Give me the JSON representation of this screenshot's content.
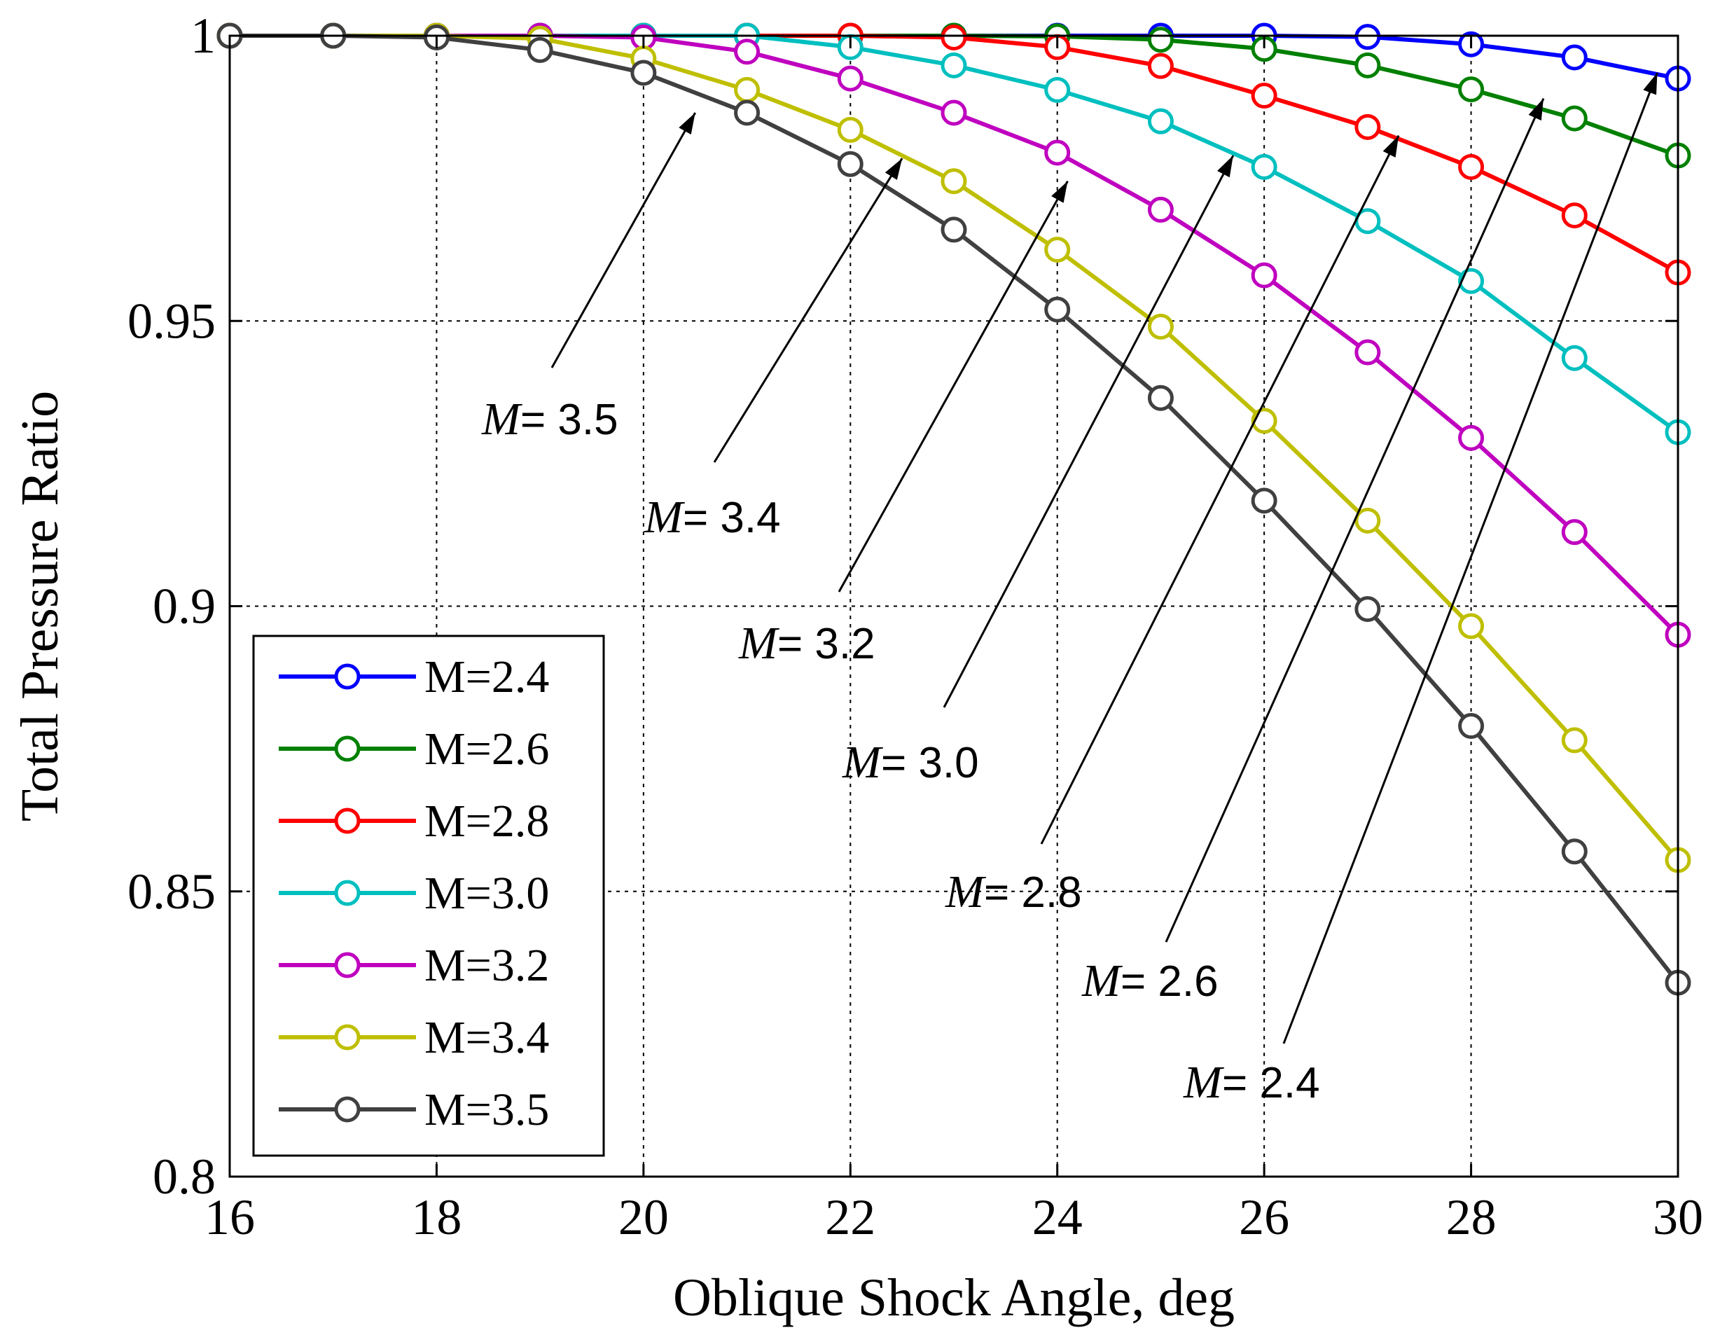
{
  "chart_data": {
    "type": "line",
    "xlabel": "Oblique Shock Angle, deg",
    "ylabel": "Total Pressure Ratio",
    "xlim": [
      16,
      30
    ],
    "ylim": [
      0.8,
      1.0
    ],
    "xticks": [
      16,
      18,
      20,
      22,
      24,
      26,
      28,
      30
    ],
    "yticks": [
      0.8,
      0.85,
      0.9,
      0.95,
      1.0
    ],
    "xtick_labels": [
      "16",
      "18",
      "20",
      "22",
      "24",
      "26",
      "28",
      "30"
    ],
    "ytick_labels": [
      "0.8",
      "0.85",
      "0.9",
      "0.95",
      "1"
    ],
    "grid": true,
    "legend_position": "bottom-left",
    "x": [
      16,
      17,
      18,
      19,
      20,
      21,
      22,
      23,
      24,
      25,
      26,
      27,
      28,
      29,
      30
    ],
    "series": [
      {
        "name": "M=2.4",
        "color": "#0000ff",
        "values": [
          1.0,
          1.0,
          1.0,
          1.0,
          1.0,
          1.0,
          1.0,
          1.0,
          1.0,
          1.0,
          1.0,
          0.9998,
          0.9985,
          0.9962,
          0.9925
        ]
      },
      {
        "name": "M=2.6",
        "color": "#008000",
        "values": [
          1.0,
          1.0,
          1.0,
          1.0,
          1.0,
          1.0,
          1.0,
          1.0,
          0.9999,
          0.9993,
          0.9977,
          0.9948,
          0.9906,
          0.9855,
          0.979
        ]
      },
      {
        "name": "M=2.8",
        "color": "#ff0000",
        "values": [
          1.0,
          1.0,
          1.0,
          1.0,
          1.0,
          1.0,
          1.0,
          0.9997,
          0.998,
          0.9947,
          0.9895,
          0.984,
          0.977,
          0.9685,
          0.9585
        ]
      },
      {
        "name": "M=3.0",
        "color": "#00bfbf",
        "values": [
          1.0,
          1.0,
          1.0,
          1.0,
          1.0,
          1.0,
          0.998,
          0.9948,
          0.9905,
          0.985,
          0.977,
          0.9675,
          0.957,
          0.9435,
          0.9305
        ]
      },
      {
        "name": "M=3.2",
        "color": "#bf00bf",
        "values": [
          1.0,
          1.0,
          1.0,
          1.0,
          0.9997,
          0.9972,
          0.9925,
          0.9865,
          0.9795,
          0.9695,
          0.958,
          0.9445,
          0.9295,
          0.913,
          0.895
        ]
      },
      {
        "name": "M=3.4",
        "color": "#bfbf00",
        "values": [
          1.0,
          1.0,
          1.0,
          0.9995,
          0.996,
          0.9905,
          0.9835,
          0.9745,
          0.9625,
          0.949,
          0.9325,
          0.915,
          0.8965,
          0.8765,
          0.8555
        ]
      },
      {
        "name": "M=3.5",
        "color": "#404040",
        "values": [
          1.0,
          1.0,
          0.9997,
          0.9975,
          0.9935,
          0.9865,
          0.9775,
          0.966,
          0.952,
          0.9365,
          0.9185,
          0.8995,
          0.879,
          0.857,
          0.834
        ]
      }
    ],
    "annotations": [
      {
        "label": "M",
        "value": "= 3.5",
        "points_to": [
          20.5,
          0.9865
        ]
      },
      {
        "label": "M",
        "value": "= 3.4",
        "points_to": [
          22.5,
          0.9785
        ]
      },
      {
        "label": "M",
        "value": "= 3.2",
        "points_to": [
          24.1,
          0.9745
        ]
      },
      {
        "label": "M",
        "value": "= 3.0",
        "points_to": [
          25.7,
          0.979
        ]
      },
      {
        "label": "M",
        "value": "= 2.8",
        "points_to": [
          27.3,
          0.9825
        ]
      },
      {
        "label": "M",
        "value": "= 2.6",
        "points_to": [
          28.7,
          0.989
        ]
      },
      {
        "label": "M",
        "value": "= 2.4",
        "points_to": [
          29.8,
          0.9935
        ]
      }
    ]
  }
}
